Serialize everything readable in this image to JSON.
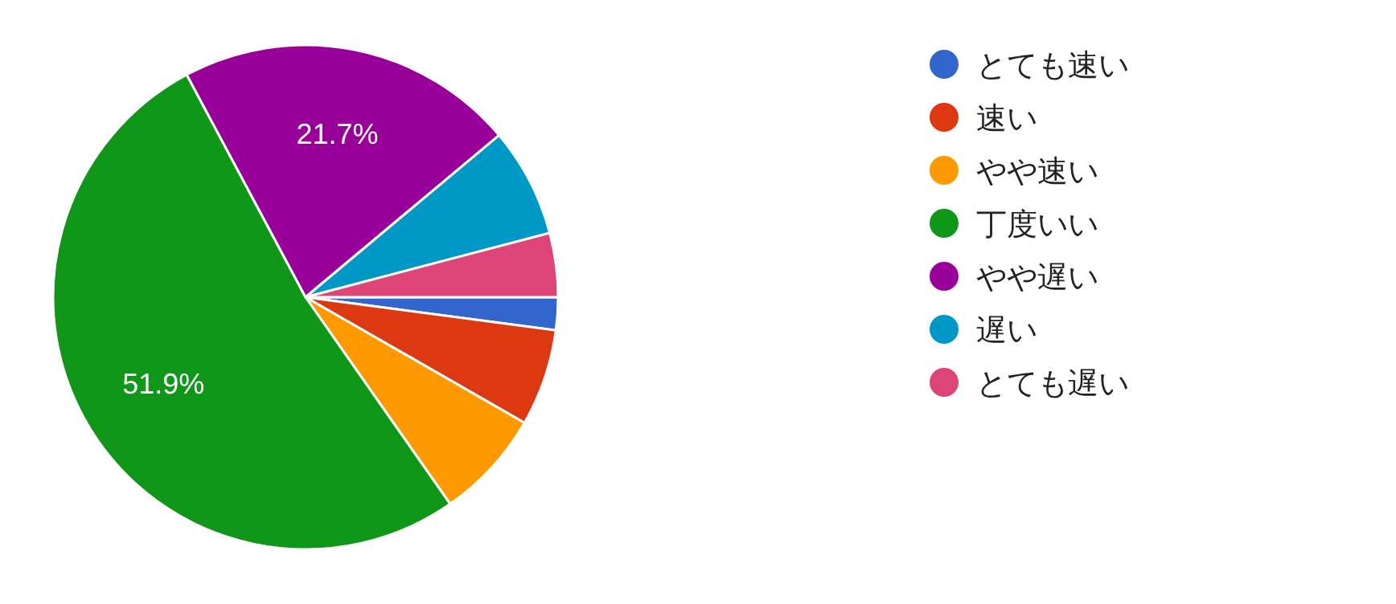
{
  "chart_data": {
    "type": "pie",
    "categories": [
      "とても速い",
      "速い",
      "やや速い",
      "丁度いい",
      "やや遅い",
      "遅い",
      "とても遅い"
    ],
    "values": [
      2.1,
      6.2,
      7,
      51.9,
      21.7,
      7,
      4.1
    ],
    "colors": [
      "#3366cc",
      "#dc3912",
      "#ff9900",
      "#109618",
      "#990099",
      "#0099c6",
      "#dd4477"
    ],
    "value_labels": [
      null,
      null,
      null,
      "51.9%",
      "21.7%",
      null,
      null
    ],
    "legend": "right"
  }
}
